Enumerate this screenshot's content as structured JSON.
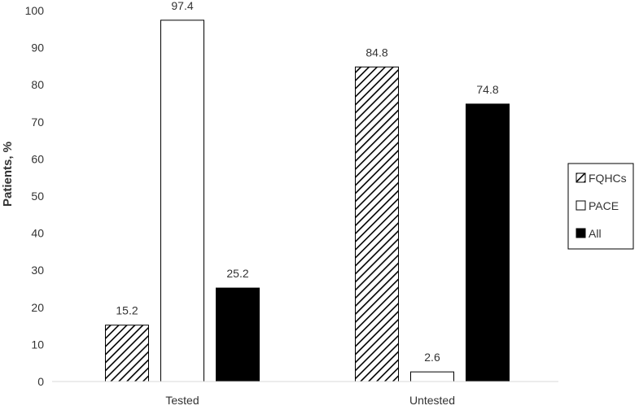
{
  "chart_data": {
    "type": "bar",
    "title": "",
    "xlabel": "",
    "ylabel": "Patients, %",
    "ylim": [
      0,
      100
    ],
    "yticks": [
      0,
      10,
      20,
      30,
      40,
      50,
      60,
      70,
      80,
      90,
      100
    ],
    "grid": false,
    "legend_position": "right",
    "categories": [
      "Tested",
      "Untested"
    ],
    "series": [
      {
        "name": "FQHCs",
        "values": [
          15.2,
          84.8
        ],
        "labels": [
          "15.2",
          "84.8"
        ],
        "fill": "hatched",
        "color": "#000000"
      },
      {
        "name": "PACE",
        "values": [
          97.4,
          2.6
        ],
        "labels": [
          "97.4",
          "2.6"
        ],
        "fill": "white",
        "color": "#ffffff"
      },
      {
        "name": "All",
        "values": [
          25.2,
          74.8
        ],
        "labels": [
          "25.2",
          "74.8"
        ],
        "fill": "solid",
        "color": "#000000"
      }
    ]
  }
}
